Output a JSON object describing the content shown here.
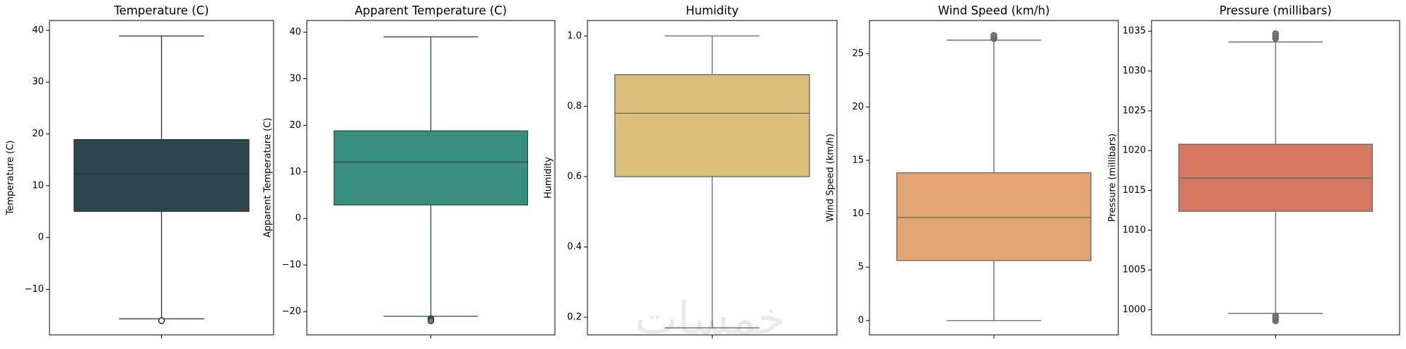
{
  "watermark": "خمسات",
  "chart_data": [
    {
      "type": "box",
      "title": "Temperature (C)",
      "ylabel": "Temperature (C)",
      "color": "#2d4650",
      "line_color": "#1f3036",
      "ylim": [
        -18.8,
        41.9
      ],
      "yticks": [
        {
          "value": -10,
          "label": "−10"
        },
        0,
        10,
        20,
        30,
        40
      ],
      "whislo": -15.7,
      "q1": 5.05,
      "med": 12.3,
      "q3": 18.9,
      "whishi": 38.9,
      "fliers": [
        -16.06
      ]
    },
    {
      "type": "box",
      "title": "Apparent Temperature (C)",
      "ylabel": "Apparent Temperature (C)",
      "color": "#37907f",
      "line_color": "#2d4a4a",
      "ylim": [
        -25,
        42.5
      ],
      "yticks": [
        {
          "value": -20,
          "label": "−20"
        },
        {
          "value": -10,
          "label": "−10"
        },
        0,
        10,
        20,
        30,
        40
      ],
      "whislo": -21.0,
      "q1": 2.9,
      "med": 12.1,
      "q3": 18.8,
      "whishi": 39.0,
      "fliers": [
        -21.5,
        -21.8,
        -22.0
      ]
    },
    {
      "type": "box",
      "title": "Humidity",
      "ylabel": "Humidity",
      "color": "#dabe79",
      "line_color": "#666666",
      "ylim": [
        0.15,
        1.044
      ],
      "yticks": [
        0.2,
        0.4,
        0.6,
        0.8,
        {
          "value": 1,
          "label": "1.0"
        }
      ],
      "whislo": 0.17,
      "q1": 0.6,
      "med": 0.78,
      "q3": 0.89,
      "whishi": 1.0,
      "fliers": []
    },
    {
      "type": "box",
      "title": "Wind Speed (km/h)",
      "ylabel": "Wind Speed (km/h)",
      "color": "#e3a572",
      "line_color": "#666666",
      "ylim": [
        -1.34,
        28.1
      ],
      "yticks": [
        0,
        5,
        10,
        15,
        20,
        25
      ],
      "whislo": 0,
      "q1": 5.62,
      "med": 9.66,
      "q3": 13.84,
      "whishi": 26.26,
      "fliers": [
        26.4,
        26.5,
        26.6,
        26.7
      ]
    },
    {
      "type": "box",
      "title": "Pressure (millibars)",
      "ylabel": "Pressure (millibars)",
      "color": "#d57963",
      "line_color": "#666666",
      "ylim": [
        996.85,
        1036.35
      ],
      "yticks": [
        1000,
        1005,
        1010,
        1015,
        1020,
        1025,
        1030,
        1035
      ],
      "whislo": 999.55,
      "q1": 1012.38,
      "med": 1016.54,
      "q3": 1020.8,
      "whishi": 1033.65,
      "fliers": [
        998.6,
        998.9,
        999.2,
        1034.1,
        1034.4,
        1034.7
      ]
    }
  ]
}
